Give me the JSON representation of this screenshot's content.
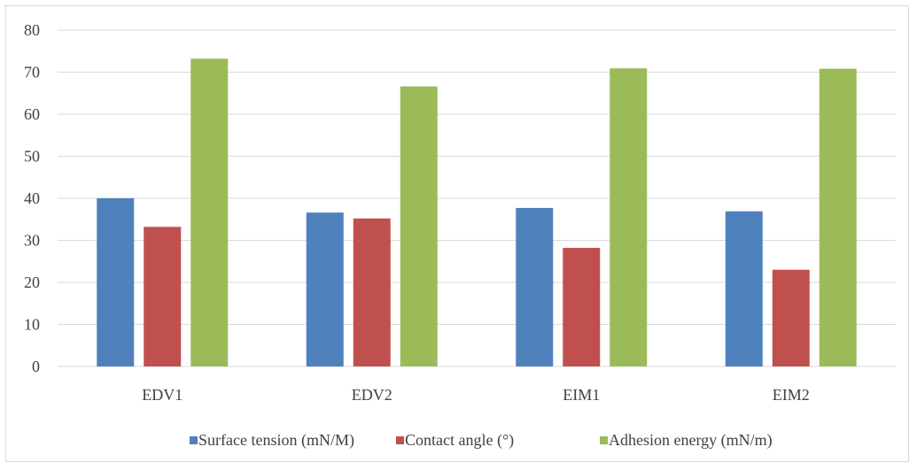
{
  "chart_data": {
    "type": "bar",
    "categories": [
      "EDV1",
      "EDV2",
      "EIM1",
      "EIM2"
    ],
    "series": [
      {
        "name": "Surface tension (mN/M)",
        "color": "#4f81bd",
        "values": [
          40.0,
          36.6,
          37.7,
          36.9
        ]
      },
      {
        "name": "Contact angle (°)",
        "color": "#c0504d",
        "values": [
          33.2,
          35.2,
          28.2,
          23.0
        ]
      },
      {
        "name": "Adhesion energy (mN/m)",
        "color": "#9bbb59",
        "values": [
          73.2,
          66.6,
          70.9,
          70.8
        ]
      }
    ],
    "ylim": [
      0,
      80
    ],
    "yticks": [
      0,
      10,
      20,
      30,
      40,
      50,
      60,
      70,
      80
    ],
    "grid": true,
    "legend_position": "bottom"
  }
}
